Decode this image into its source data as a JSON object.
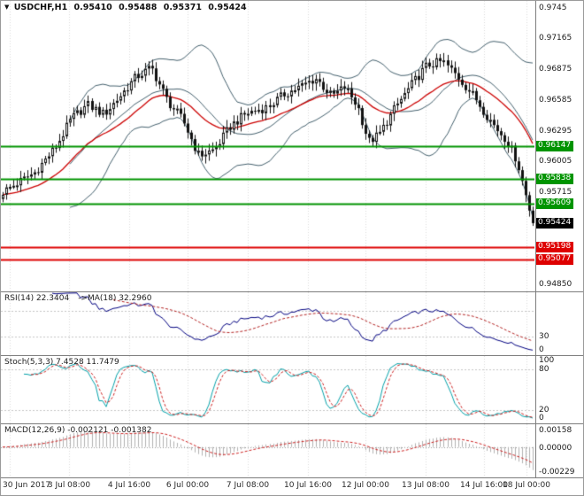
{
  "header": {
    "symbol": "USDCHF,H1",
    "open": "0.95410",
    "high": "0.95488",
    "low": "0.95371",
    "close": "0.95424"
  },
  "main_chart": {
    "price_axis": [
      "0.9745",
      "0.97165",
      "0.96875",
      "0.96585",
      "0.96295",
      "0.96005",
      "0.95715",
      "0.94850"
    ],
    "levels": [
      {
        "price": "0.96147",
        "color": "level_green"
      },
      {
        "price": "0.95838",
        "color": "level_green"
      },
      {
        "price": "0.95609",
        "color": "level_green"
      },
      {
        "price": "0.95198",
        "color": "level_red"
      },
      {
        "price": "0.95077",
        "color": "level_red"
      }
    ],
    "current_price": "0.95424"
  },
  "indicators": {
    "rsi": {
      "label": "RSI(14) 22.3404",
      "ma_label": "->MA(18) 32.2960",
      "axis": [
        "30",
        "0"
      ]
    },
    "stoch": {
      "label": "Stoch(5,3,3) 7.4528 11.7479",
      "axis": [
        "100",
        "80",
        "20",
        "0"
      ]
    },
    "macd": {
      "label": "MACD(12,26,9) -0.002121 -0.001382",
      "axis": [
        "0.00158",
        "0.00000",
        "-0.00229"
      ]
    }
  },
  "time_axis": [
    {
      "label": "30 Jun 2017",
      "t": 0.016
    },
    {
      "label": "3 Jul 08:00",
      "t": 0.128
    },
    {
      "label": "4 Jul 16:00",
      "t": 0.241
    },
    {
      "label": "6 Jul 00:00",
      "t": 0.35
    },
    {
      "label": "7 Jul 08:00",
      "t": 0.463
    },
    {
      "label": "10 Jul 16:00",
      "t": 0.575
    },
    {
      "label": "12 Jul 00:00",
      "t": 0.684
    },
    {
      "label": "13 Jul 08:00",
      "t": 0.796
    },
    {
      "label": "14 Jul 16:00",
      "t": 0.906
    },
    {
      "label": "18 Jul 00:00",
      "t": 0.985
    }
  ],
  "colors": {
    "level_green": "#009400",
    "level_red": "#DE0000",
    "current_tag": "#000000",
    "bollinger": "#44606d",
    "ma_red": "#cc0000",
    "rsi_line": "#000080",
    "rsi_signal": "#b22222",
    "stoch_line": "#00a0a8",
    "stoch_signal": "#cc2222",
    "macd_hist": "#b0b0b0",
    "macd_signal": "#cc2222",
    "grid": "#d9d9d9",
    "candle": "#111111"
  },
  "chart_data": {
    "type": "candlestick",
    "symbol": "USDCHF",
    "timeframe": "H1",
    "ohlc_current": {
      "open": 0.9541,
      "high": 0.95488,
      "low": 0.95371,
      "close": 0.95424
    },
    "ylim": [
      0.9478,
      0.9752
    ],
    "candle_count": 150,
    "price_path": [
      {
        "t": 0.0,
        "p": 0.9572
      },
      {
        "t": 0.03,
        "p": 0.9581
      },
      {
        "t": 0.06,
        "p": 0.959
      },
      {
        "t": 0.1,
        "p": 0.9614
      },
      {
        "t": 0.13,
        "p": 0.9641
      },
      {
        "t": 0.16,
        "p": 0.9654
      },
      {
        "t": 0.19,
        "p": 0.9645
      },
      {
        "t": 0.22,
        "p": 0.9662
      },
      {
        "t": 0.25,
        "p": 0.968
      },
      {
        "t": 0.28,
        "p": 0.9689
      },
      {
        "t": 0.31,
        "p": 0.9658
      },
      {
        "t": 0.34,
        "p": 0.9639
      },
      {
        "t": 0.37,
        "p": 0.9606
      },
      {
        "t": 0.4,
        "p": 0.9612
      },
      {
        "t": 0.43,
        "p": 0.9634
      },
      {
        "t": 0.46,
        "p": 0.9646
      },
      {
        "t": 0.5,
        "p": 0.9652
      },
      {
        "t": 0.53,
        "p": 0.9664
      },
      {
        "t": 0.56,
        "p": 0.9671
      },
      {
        "t": 0.59,
        "p": 0.9679
      },
      {
        "t": 0.62,
        "p": 0.9662
      },
      {
        "t": 0.645,
        "p": 0.9671
      },
      {
        "t": 0.67,
        "p": 0.9652
      },
      {
        "t": 0.69,
        "p": 0.9619
      },
      {
        "t": 0.71,
        "p": 0.9626
      },
      {
        "t": 0.74,
        "p": 0.9651
      },
      {
        "t": 0.77,
        "p": 0.9672
      },
      {
        "t": 0.8,
        "p": 0.9691
      },
      {
        "t": 0.83,
        "p": 0.9695
      },
      {
        "t": 0.86,
        "p": 0.9679
      },
      {
        "t": 0.89,
        "p": 0.9661
      },
      {
        "t": 0.91,
        "p": 0.9646
      },
      {
        "t": 0.93,
        "p": 0.9632
      },
      {
        "t": 0.95,
        "p": 0.9621
      },
      {
        "t": 0.97,
        "p": 0.9601
      },
      {
        "t": 0.985,
        "p": 0.9572
      },
      {
        "t": 1.0,
        "p": 0.95424
      }
    ],
    "overlays": [
      "Bollinger Bands (20,2)",
      "Red MA",
      "Horizontal support/resistance levels"
    ],
    "subpanels": [
      "RSI(14) with MA(18)",
      "Stochastic(5,3,3)",
      "MACD(12,26,9)"
    ]
  }
}
